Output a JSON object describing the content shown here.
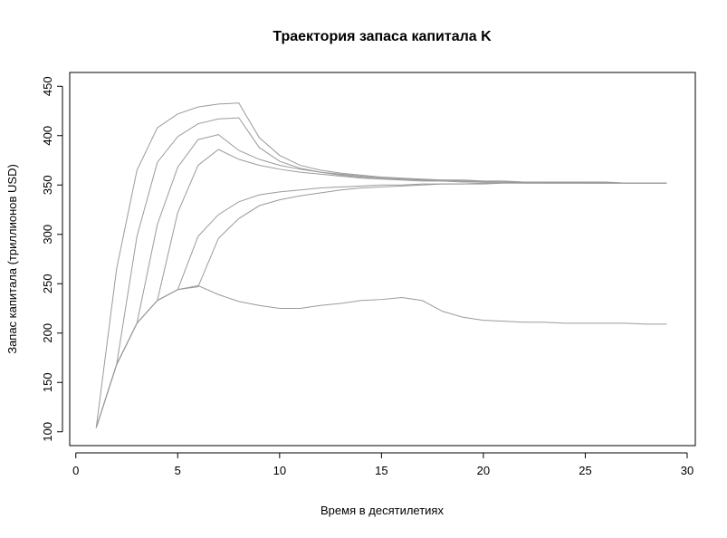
{
  "chart_data": {
    "type": "line",
    "title": "Траектория запаса капитала K",
    "x_label": "Время в десятилетиях",
    "y_label": "Запас капитала (триллионов USD)",
    "x": [
      1,
      2,
      3,
      4,
      5,
      6,
      7,
      8,
      9,
      10,
      11,
      12,
      13,
      14,
      15,
      16,
      17,
      18,
      19,
      20,
      21,
      22,
      23,
      24,
      25,
      26,
      27,
      28,
      29
    ],
    "series": [
      {
        "color": "#9a9a9a",
        "values": [
          104,
          265,
          365,
          408,
          422,
          429,
          432,
          433,
          398,
          380,
          370,
          365,
          362,
          360,
          358,
          357,
          356,
          355,
          355,
          354,
          354,
          353,
          353,
          353,
          353,
          353,
          352,
          352,
          352
        ]
      },
      {
        "color": "#9a9a9a",
        "values": [
          104,
          168,
          298,
          373,
          399,
          412,
          417,
          418,
          388,
          374,
          367,
          363,
          361,
          359,
          357,
          356,
          355,
          355,
          354,
          354,
          353,
          353,
          353,
          353,
          352,
          352,
          352,
          352,
          352
        ]
      },
      {
        "color": "#9a9a9a",
        "values": [
          104,
          168,
          210,
          310,
          368,
          396,
          401,
          385,
          376,
          370,
          366,
          363,
          360,
          358,
          357,
          356,
          355,
          354,
          354,
          353,
          353,
          353,
          352,
          352,
          352,
          352,
          352,
          352,
          352
        ]
      },
      {
        "color": "#9a9a9a",
        "values": [
          104,
          168,
          210,
          233,
          322,
          370,
          386,
          376,
          370,
          366,
          363,
          361,
          359,
          357,
          356,
          355,
          354,
          354,
          353,
          353,
          353,
          352,
          352,
          352,
          352,
          352,
          352,
          352,
          352
        ]
      },
      {
        "color": "#9a9a9a",
        "values": [
          104,
          168,
          210,
          233,
          244,
          298,
          320,
          333,
          340,
          343,
          345,
          347,
          348,
          349,
          350,
          350,
          351,
          351,
          351,
          352,
          352,
          352,
          352,
          352,
          352,
          352,
          352,
          352,
          352
        ]
      },
      {
        "color": "#9a9a9a",
        "values": [
          104,
          168,
          210,
          233,
          244,
          247,
          296,
          316,
          329,
          335,
          339,
          342,
          345,
          347,
          348,
          349,
          350,
          351,
          351,
          351,
          352,
          352,
          352,
          352,
          352,
          352,
          352,
          352,
          352
        ]
      },
      {
        "color": "#9a9a9a",
        "values": [
          104,
          168,
          210,
          233,
          244,
          248,
          239,
          232,
          228,
          225,
          225,
          228,
          230,
          233,
          234,
          236,
          233,
          222,
          216,
          213,
          212,
          211,
          211,
          210,
          210,
          210,
          210,
          209,
          209
        ]
      }
    ],
    "xlim": [
      -0.3,
      30.4
    ],
    "xticks": [
      0,
      5,
      10,
      15,
      20,
      25,
      30
    ],
    "ylim": [
      86,
      464
    ],
    "yticks": [
      100,
      150,
      200,
      250,
      300,
      350,
      400,
      450
    ]
  }
}
